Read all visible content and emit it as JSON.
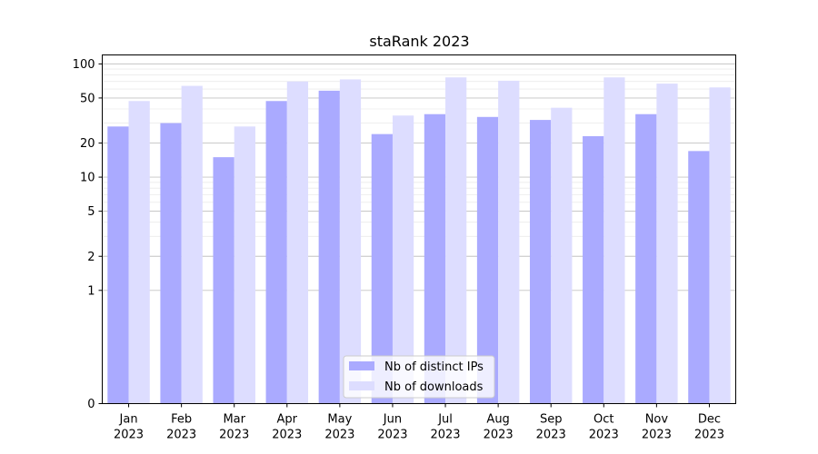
{
  "chart_data": {
    "type": "bar",
    "title": "staRank 2023",
    "xlabel": "",
    "ylabel": "",
    "y_scale": "symlog",
    "ylim": [
      0,
      120
    ],
    "y_ticks": [
      0,
      1,
      2,
      5,
      10,
      20,
      50,
      100
    ],
    "grid": "y",
    "legend_position": "bottom-center",
    "categories": [
      {
        "month": "Jan",
        "year": "2023"
      },
      {
        "month": "Feb",
        "year": "2023"
      },
      {
        "month": "Mar",
        "year": "2023"
      },
      {
        "month": "Apr",
        "year": "2023"
      },
      {
        "month": "May",
        "year": "2023"
      },
      {
        "month": "Jun",
        "year": "2023"
      },
      {
        "month": "Jul",
        "year": "2023"
      },
      {
        "month": "Aug",
        "year": "2023"
      },
      {
        "month": "Sep",
        "year": "2023"
      },
      {
        "month": "Oct",
        "year": "2023"
      },
      {
        "month": "Nov",
        "year": "2023"
      },
      {
        "month": "Dec",
        "year": "2023"
      }
    ],
    "series": [
      {
        "name": "Nb of distinct IPs",
        "color": "#aaaaff",
        "values": [
          28,
          30,
          15,
          47,
          58,
          24,
          36,
          34,
          32,
          23,
          36,
          17
        ]
      },
      {
        "name": "Nb of downloads",
        "color": "#ddddff",
        "values": [
          47,
          64,
          28,
          70,
          73,
          35,
          76,
          71,
          41,
          76,
          67,
          62
        ]
      }
    ]
  }
}
